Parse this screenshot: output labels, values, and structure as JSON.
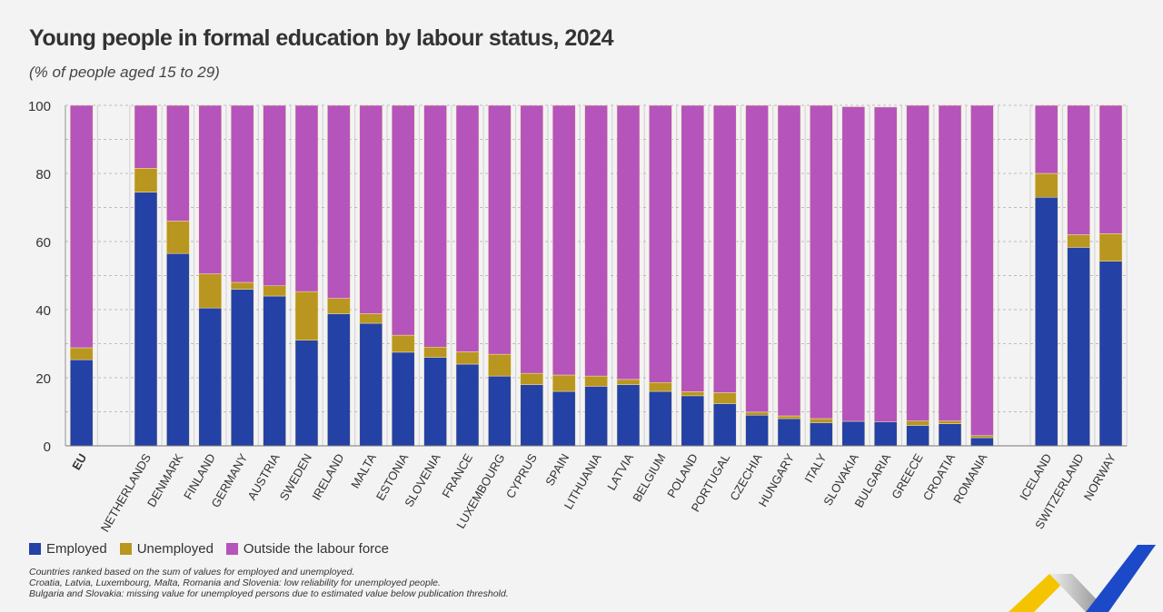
{
  "chart_data": {
    "type": "bar",
    "stacked": true,
    "title": "Young people in formal education by labour status, 2024",
    "subtitle": "(% of people aged 15 to 29)",
    "ylim": [
      0,
      100
    ],
    "yticks": [
      0,
      20,
      40,
      60,
      80,
      100
    ],
    "grid": true,
    "legend_placement": "bottom-left",
    "categories": [
      "EU",
      "NETHERLANDS",
      "DENMARK",
      "FINLAND",
      "GERMANY",
      "AUSTRIA",
      "SWEDEN",
      "IRELAND",
      "MALTA",
      "ESTONIA",
      "SLOVENIA",
      "FRANCE",
      "LUXEMBOURG",
      "CYPRUS",
      "SPAIN",
      "LITHUANIA",
      "LATVIA",
      "BELGIUM",
      "POLAND",
      "PORTUGAL",
      "CZECHIA",
      "HUNGARY",
      "ITALY",
      "SLOVAKIA",
      "BULGARIA",
      "GREECE",
      "CROATIA",
      "ROMANIA",
      "ICELAND",
      "SWITZERLAND",
      "NORWAY"
    ],
    "groups_after": [
      0,
      27
    ],
    "series": [
      {
        "name": "Employed",
        "color": "#2441a5",
        "values": [
          25.3,
          74.5,
          56.5,
          40.5,
          46.0,
          44.0,
          31.0,
          38.8,
          36.0,
          27.5,
          26.0,
          24.0,
          20.5,
          18.0,
          16.0,
          17.5,
          18.0,
          16.0,
          14.7,
          12.4,
          9.0,
          8.0,
          6.8,
          7.2,
          7.0,
          6.0,
          6.5,
          2.4,
          73.0,
          58.3,
          54.2
        ]
      },
      {
        "name": "Unemployed",
        "color": "#b8961f",
        "values": [
          3.5,
          7.0,
          9.5,
          10.0,
          2.0,
          3.0,
          14.3,
          4.5,
          2.8,
          5.0,
          3.0,
          3.6,
          6.4,
          3.3,
          4.8,
          3.0,
          1.5,
          2.6,
          1.2,
          3.2,
          0.9,
          0.8,
          1.2,
          null,
          null,
          1.3,
          0.8,
          0.6,
          7.0,
          3.7,
          8.1
        ]
      },
      {
        "name": "Outside the labour force",
        "color": "#b554bb",
        "values": [
          71.2,
          18.5,
          34.0,
          49.5,
          52.0,
          53.0,
          54.7,
          56.7,
          61.2,
          67.5,
          71.0,
          72.4,
          73.1,
          78.7,
          79.2,
          79.5,
          80.5,
          81.4,
          84.1,
          84.4,
          90.1,
          91.2,
          92.0,
          92.4,
          92.5,
          92.7,
          92.7,
          97.0,
          20.0,
          38.0,
          37.7
        ]
      }
    ]
  },
  "notes": [
    "Countries ranked based on the sum of values for employed and unemployed.",
    "Croatia, Latvia, Luxembourg, Malta, Romania and Slovenia: low reliability for unemployed people.",
    "Bulgaria and Slovakia: missing value for unemployed persons due to estimated value below publication threshold."
  ]
}
